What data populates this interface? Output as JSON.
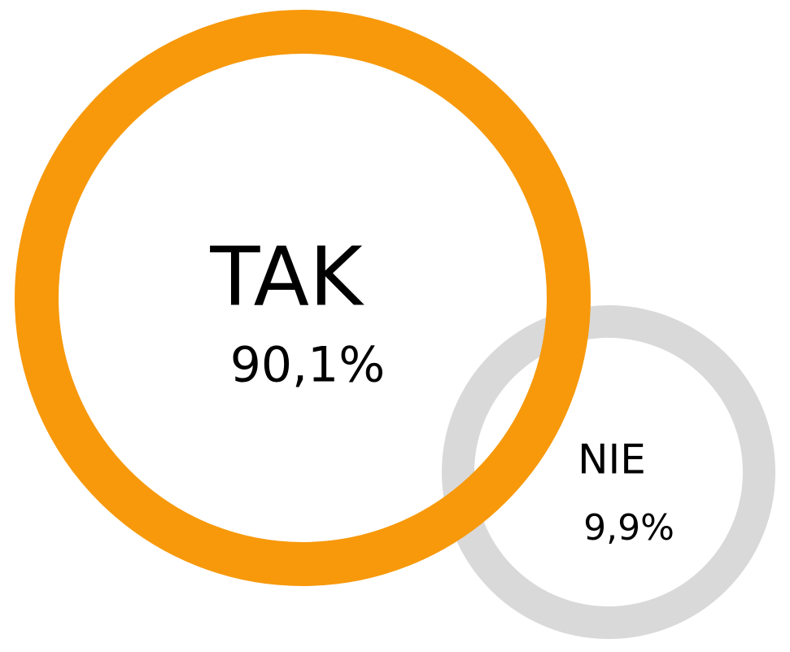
{
  "chart_data": {
    "type": "circles",
    "categories": [
      "TAK",
      "NIE"
    ],
    "values": [
      90.1,
      9.9
    ],
    "value_labels": [
      "90,1%",
      "9,9%"
    ],
    "colors": [
      "#f7990b",
      "#d9d9d9"
    ]
  }
}
